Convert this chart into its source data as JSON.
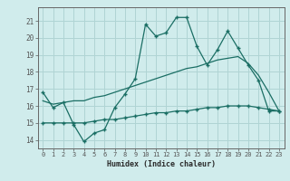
{
  "xlabel": "Humidex (Indice chaleur)",
  "background_color": "#d0ecec",
  "grid_color": "#b0d4d4",
  "line_color": "#1a6e64",
  "line1_x": [
    0,
    1,
    2,
    3,
    4,
    5,
    6,
    7,
    8,
    9,
    10,
    11,
    12,
    13,
    14,
    15,
    16,
    17,
    18,
    19,
    20,
    21,
    22,
    23
  ],
  "line1_y": [
    16.8,
    15.9,
    16.2,
    14.9,
    13.9,
    14.4,
    14.6,
    15.9,
    16.7,
    17.6,
    20.8,
    20.1,
    20.3,
    21.2,
    21.2,
    19.5,
    18.4,
    19.3,
    20.4,
    19.4,
    18.4,
    17.5,
    15.7,
    15.7
  ],
  "line2_x": [
    0,
    1,
    2,
    3,
    4,
    5,
    6,
    7,
    8,
    9,
    10,
    11,
    12,
    13,
    14,
    15,
    16,
    17,
    18,
    19,
    20,
    21,
    22,
    23
  ],
  "line2_y": [
    16.3,
    16.1,
    16.2,
    16.3,
    16.3,
    16.5,
    16.6,
    16.8,
    17.0,
    17.2,
    17.4,
    17.6,
    17.8,
    18.0,
    18.2,
    18.3,
    18.5,
    18.7,
    18.8,
    18.9,
    18.5,
    17.8,
    16.8,
    15.7
  ],
  "line3_x": [
    0,
    1,
    2,
    3,
    4,
    5,
    6,
    7,
    8,
    9,
    10,
    11,
    12,
    13,
    14,
    15,
    16,
    17,
    18,
    19,
    20,
    21,
    22,
    23
  ],
  "line3_y": [
    15.0,
    15.0,
    15.0,
    15.0,
    15.0,
    15.1,
    15.2,
    15.2,
    15.3,
    15.4,
    15.5,
    15.6,
    15.6,
    15.7,
    15.7,
    15.8,
    15.9,
    15.9,
    16.0,
    16.0,
    16.0,
    15.9,
    15.8,
    15.7
  ],
  "ylim": [
    13.5,
    21.8
  ],
  "xlim": [
    -0.5,
    23.5
  ],
  "yticks": [
    14,
    15,
    16,
    17,
    18,
    19,
    20,
    21
  ],
  "xticks": [
    0,
    1,
    2,
    3,
    4,
    5,
    6,
    7,
    8,
    9,
    10,
    11,
    12,
    13,
    14,
    15,
    16,
    17,
    18,
    19,
    20,
    21,
    22,
    23
  ]
}
